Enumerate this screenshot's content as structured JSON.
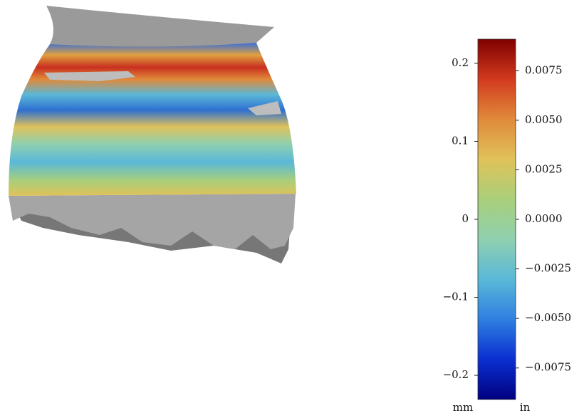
{
  "chart_data": {
    "type": "colorbar",
    "colormap": [
      "#00007f",
      "#0a2fd0",
      "#2f7fe0",
      "#5ab8d8",
      "#8fd0b0",
      "#a9cf7a",
      "#e0c25a",
      "#e08a3a",
      "#d23a1e",
      "#7f0000"
    ],
    "ylim": [
      -0.231,
      0.231
    ],
    "yticks": [
      {
        "value": -0.2,
        "label": "−0.2"
      },
      {
        "value": -0.1,
        "label": "−0.1"
      },
      0.0,
      0.1,
      0.2
    ],
    "y2lim": [
      -0.00909,
      0.00909
    ],
    "y2ticks": [
      {
        "value": -0.0075,
        "label": "−0.0075"
      },
      {
        "value": -0.005,
        "label": "−0.0050"
      },
      {
        "value": -0.0025,
        "label": "−0.0025"
      },
      {
        "value": 0,
        "label": "0.0000"
      },
      {
        "value": 0.0025,
        "label": "0.0025"
      },
      {
        "value": 0.005,
        "label": "0.0050"
      },
      {
        "value": 0.0075,
        "label": "0.0075"
      }
    ],
    "ylabel": "mm",
    "y2label": "in"
  }
}
